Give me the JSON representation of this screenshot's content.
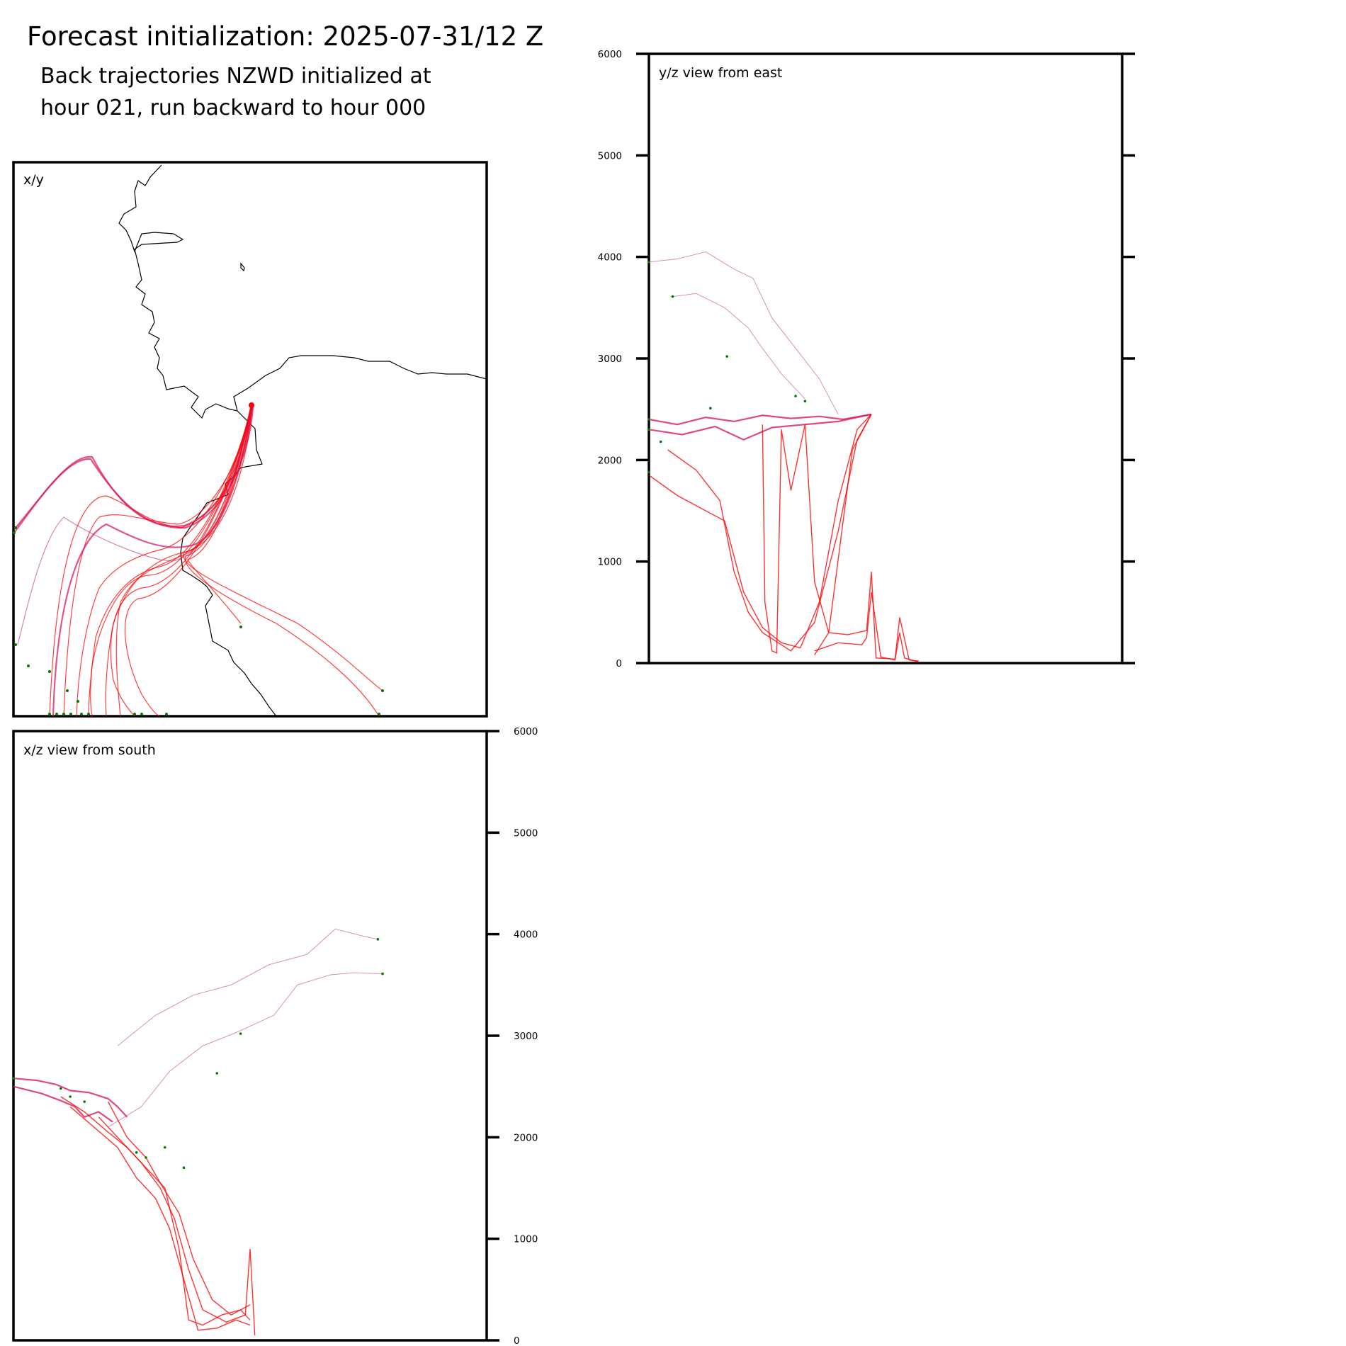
{
  "header": {
    "title": "Forecast initialization: 2025-07-31/12 Z",
    "subtitle_line1": "Back trajectories NZWD initialized at",
    "subtitle_line2": "hour 021, run backward to hour 000"
  },
  "colors": {
    "trajectory_low": "#ff0000",
    "trajectory_mid": "#d81b60",
    "trajectory_high": "#b0207a",
    "endpoint_marker": "#007a00",
    "coastline": "#000000",
    "frame": "#000000"
  },
  "chart_data": [
    {
      "type": "line",
      "panel": "xy",
      "label": "x/y",
      "description_only": false,
      "series_kind": "trajectory_paths",
      "coastline": true
    },
    {
      "type": "line",
      "panel": "yz",
      "label": "y/z view from east",
      "ylabel": "",
      "ylim": [
        0,
        6000
      ],
      "y_ticks": [
        "0",
        "1000",
        "2000",
        "3000",
        "4000",
        "5000",
        "6000"
      ],
      "series": [
        {
          "group": "high",
          "x": [
            0.0,
            0.06,
            0.12,
            0.18,
            0.22,
            0.26,
            0.31,
            0.36,
            0.4
          ],
          "y": [
            3950,
            3980,
            4050,
            3880,
            3790,
            3400,
            3100,
            2800,
            2450
          ]
        },
        {
          "group": "high",
          "x": [
            0.05,
            0.1,
            0.16,
            0.21,
            0.24,
            0.28,
            0.33
          ],
          "y": [
            3610,
            3640,
            3500,
            3300,
            3100,
            2850,
            2600
          ]
        },
        {
          "group": "mid",
          "x": [
            0.0,
            0.06,
            0.12,
            0.18,
            0.24,
            0.3,
            0.36,
            0.41,
            0.47
          ],
          "y": [
            2400,
            2350,
            2420,
            2380,
            2440,
            2410,
            2430,
            2400,
            2450
          ]
        },
        {
          "group": "mid",
          "x": [
            0.0,
            0.07,
            0.14,
            0.2,
            0.26,
            0.33,
            0.4,
            0.47
          ],
          "y": [
            2300,
            2250,
            2330,
            2200,
            2320,
            2350,
            2380,
            2450
          ]
        },
        {
          "group": "low",
          "x": [
            0.0,
            0.06,
            0.12,
            0.16,
            0.2,
            0.24,
            0.28,
            0.32,
            0.36,
            0.4,
            0.44,
            0.47
          ],
          "y": [
            1850,
            1650,
            1500,
            1400,
            700,
            350,
            200,
            150,
            600,
            1600,
            2300,
            2450
          ]
        },
        {
          "group": "low",
          "x": [
            0.04,
            0.1,
            0.15,
            0.18,
            0.21,
            0.24,
            0.3,
            0.35,
            0.4,
            0.44,
            0.47
          ],
          "y": [
            2100,
            1900,
            1600,
            900,
            500,
            300,
            120,
            400,
            1300,
            2200,
            2450
          ]
        },
        {
          "group": "low",
          "x": [
            0.24,
            0.245,
            0.26,
            0.27,
            0.28,
            0.3,
            0.33,
            0.35,
            0.38,
            0.43,
            0.47
          ],
          "y": [
            2350,
            600,
            120,
            100,
            2300,
            1700,
            2350,
            800,
            300,
            2100,
            2450
          ]
        },
        {
          "group": "low",
          "x": [
            0.35,
            0.38,
            0.42,
            0.46,
            0.47,
            0.48,
            0.52,
            0.53,
            0.55,
            0.57
          ],
          "y": [
            80,
            300,
            280,
            320,
            900,
            50,
            40,
            450,
            30,
            20
          ]
        },
        {
          "group": "low",
          "x": [
            0.35,
            0.4,
            0.45,
            0.46,
            0.47,
            0.49,
            0.52,
            0.53,
            0.54,
            0.57
          ],
          "y": [
            120,
            200,
            180,
            250,
            700,
            60,
            30,
            300,
            50,
            10
          ]
        }
      ],
      "endpoints": {
        "x": [
          0.0,
          0.0,
          0.05,
          0.165,
          0.31,
          0.33,
          0.13,
          0.025,
          0.0,
          0.0
        ],
        "y": [
          3950,
          2400,
          3610,
          3020,
          2630,
          2580,
          2510,
          2180,
          1880,
          2300
        ]
      }
    },
    {
      "type": "line",
      "panel": "xz",
      "label": "x/z view from south",
      "ylabel": "",
      "ylim": [
        0,
        6000
      ],
      "y_ticks": [
        "0",
        "1000",
        "2000",
        "3000",
        "4000",
        "5000",
        "6000"
      ],
      "series": [
        {
          "group": "high",
          "x": [
            0.22,
            0.3,
            0.38,
            0.46,
            0.54,
            0.62,
            0.68,
            0.74,
            0.77
          ],
          "y": [
            2900,
            3200,
            3400,
            3500,
            3700,
            3800,
            4050,
            3980,
            3950
          ]
        },
        {
          "group": "high",
          "x": [
            0.2,
            0.27,
            0.33,
            0.4,
            0.47,
            0.55,
            0.6,
            0.67,
            0.72,
            0.78
          ],
          "y": [
            2100,
            2300,
            2650,
            2900,
            3030,
            3200,
            3500,
            3600,
            3620,
            3610
          ]
        },
        {
          "group": "mid",
          "x": [
            0.0,
            0.05,
            0.09,
            0.12,
            0.16,
            0.2,
            0.22,
            0.24
          ],
          "y": [
            2580,
            2560,
            2520,
            2460,
            2440,
            2380,
            2300,
            2200
          ]
        },
        {
          "group": "mid",
          "x": [
            0.0,
            0.06,
            0.1,
            0.13,
            0.15,
            0.18,
            0.21
          ],
          "y": [
            2500,
            2430,
            2360,
            2300,
            2200,
            2250,
            2150
          ]
        },
        {
          "group": "low",
          "x": [
            0.1,
            0.15,
            0.2,
            0.24,
            0.28,
            0.32,
            0.35,
            0.37,
            0.4,
            0.44,
            0.48,
            0.5
          ],
          "y": [
            2400,
            2250,
            2050,
            1900,
            1700,
            1500,
            900,
            200,
            150,
            250,
            300,
            200
          ]
        },
        {
          "group": "low",
          "x": [
            0.12,
            0.17,
            0.22,
            0.26,
            0.3,
            0.33,
            0.36,
            0.39,
            0.43,
            0.47,
            0.5
          ],
          "y": [
            2300,
            2100,
            1900,
            1600,
            1400,
            1100,
            600,
            100,
            120,
            200,
            150
          ]
        },
        {
          "group": "low",
          "x": [
            0.18,
            0.23,
            0.27,
            0.31,
            0.34,
            0.37,
            0.4,
            0.45,
            0.49,
            0.5,
            0.51
          ],
          "y": [
            2200,
            1950,
            1750,
            1500,
            1200,
            700,
            300,
            180,
            250,
            900,
            50
          ]
        },
        {
          "group": "low",
          "x": [
            0.2,
            0.24,
            0.28,
            0.31,
            0.35,
            0.38,
            0.42,
            0.46,
            0.5
          ],
          "y": [
            2350,
            2000,
            1800,
            1550,
            1250,
            800,
            400,
            250,
            350
          ]
        }
      ],
      "endpoints": {
        "x": [
          0.0,
          0.77,
          0.78,
          0.48,
          0.43,
          0.1,
          0.12,
          0.15,
          0.26,
          0.28,
          0.32,
          0.36
        ],
        "y": [
          2580,
          3950,
          3610,
          3020,
          2630,
          2480,
          2400,
          2350,
          1850,
          1800,
          1900,
          1700
        ]
      }
    }
  ]
}
